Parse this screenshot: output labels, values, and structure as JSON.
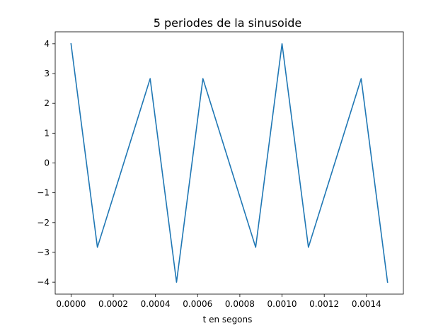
{
  "chart_data": {
    "type": "line",
    "title": "5 periodes de la sinusoide",
    "xlabel": "t en segons",
    "ylabel": "",
    "xlim": [
      -7.5e-05,
      0.001575
    ],
    "ylim": [
      -4.4,
      4.4
    ],
    "x_ticks": [
      0.0,
      0.0002,
      0.0004,
      0.0006,
      0.0008,
      0.001,
      0.0012,
      0.0014
    ],
    "x_tick_labels": [
      "0.0000",
      "0.0002",
      "0.0004",
      "0.0006",
      "0.0008",
      "0.0010",
      "0.0012",
      "0.0014"
    ],
    "y_ticks": [
      4,
      3,
      2,
      1,
      0,
      -1,
      -2,
      -3,
      -4
    ],
    "y_tick_labels": [
      "4",
      "3",
      "2",
      "1",
      "0",
      "−1",
      "−2",
      "−3",
      "−4"
    ],
    "grid": false,
    "series": [
      {
        "name": "sinusoide",
        "color": "#1f77b4",
        "x": [
          0.0,
          0.000125,
          0.000375,
          0.0005,
          0.000625,
          0.000875,
          0.001,
          0.001125,
          0.001375,
          0.0015
        ],
        "y": [
          4.0,
          -2.83,
          2.83,
          -4.0,
          2.83,
          -2.83,
          4.0,
          -2.83,
          2.83,
          -4.0
        ]
      }
    ]
  }
}
